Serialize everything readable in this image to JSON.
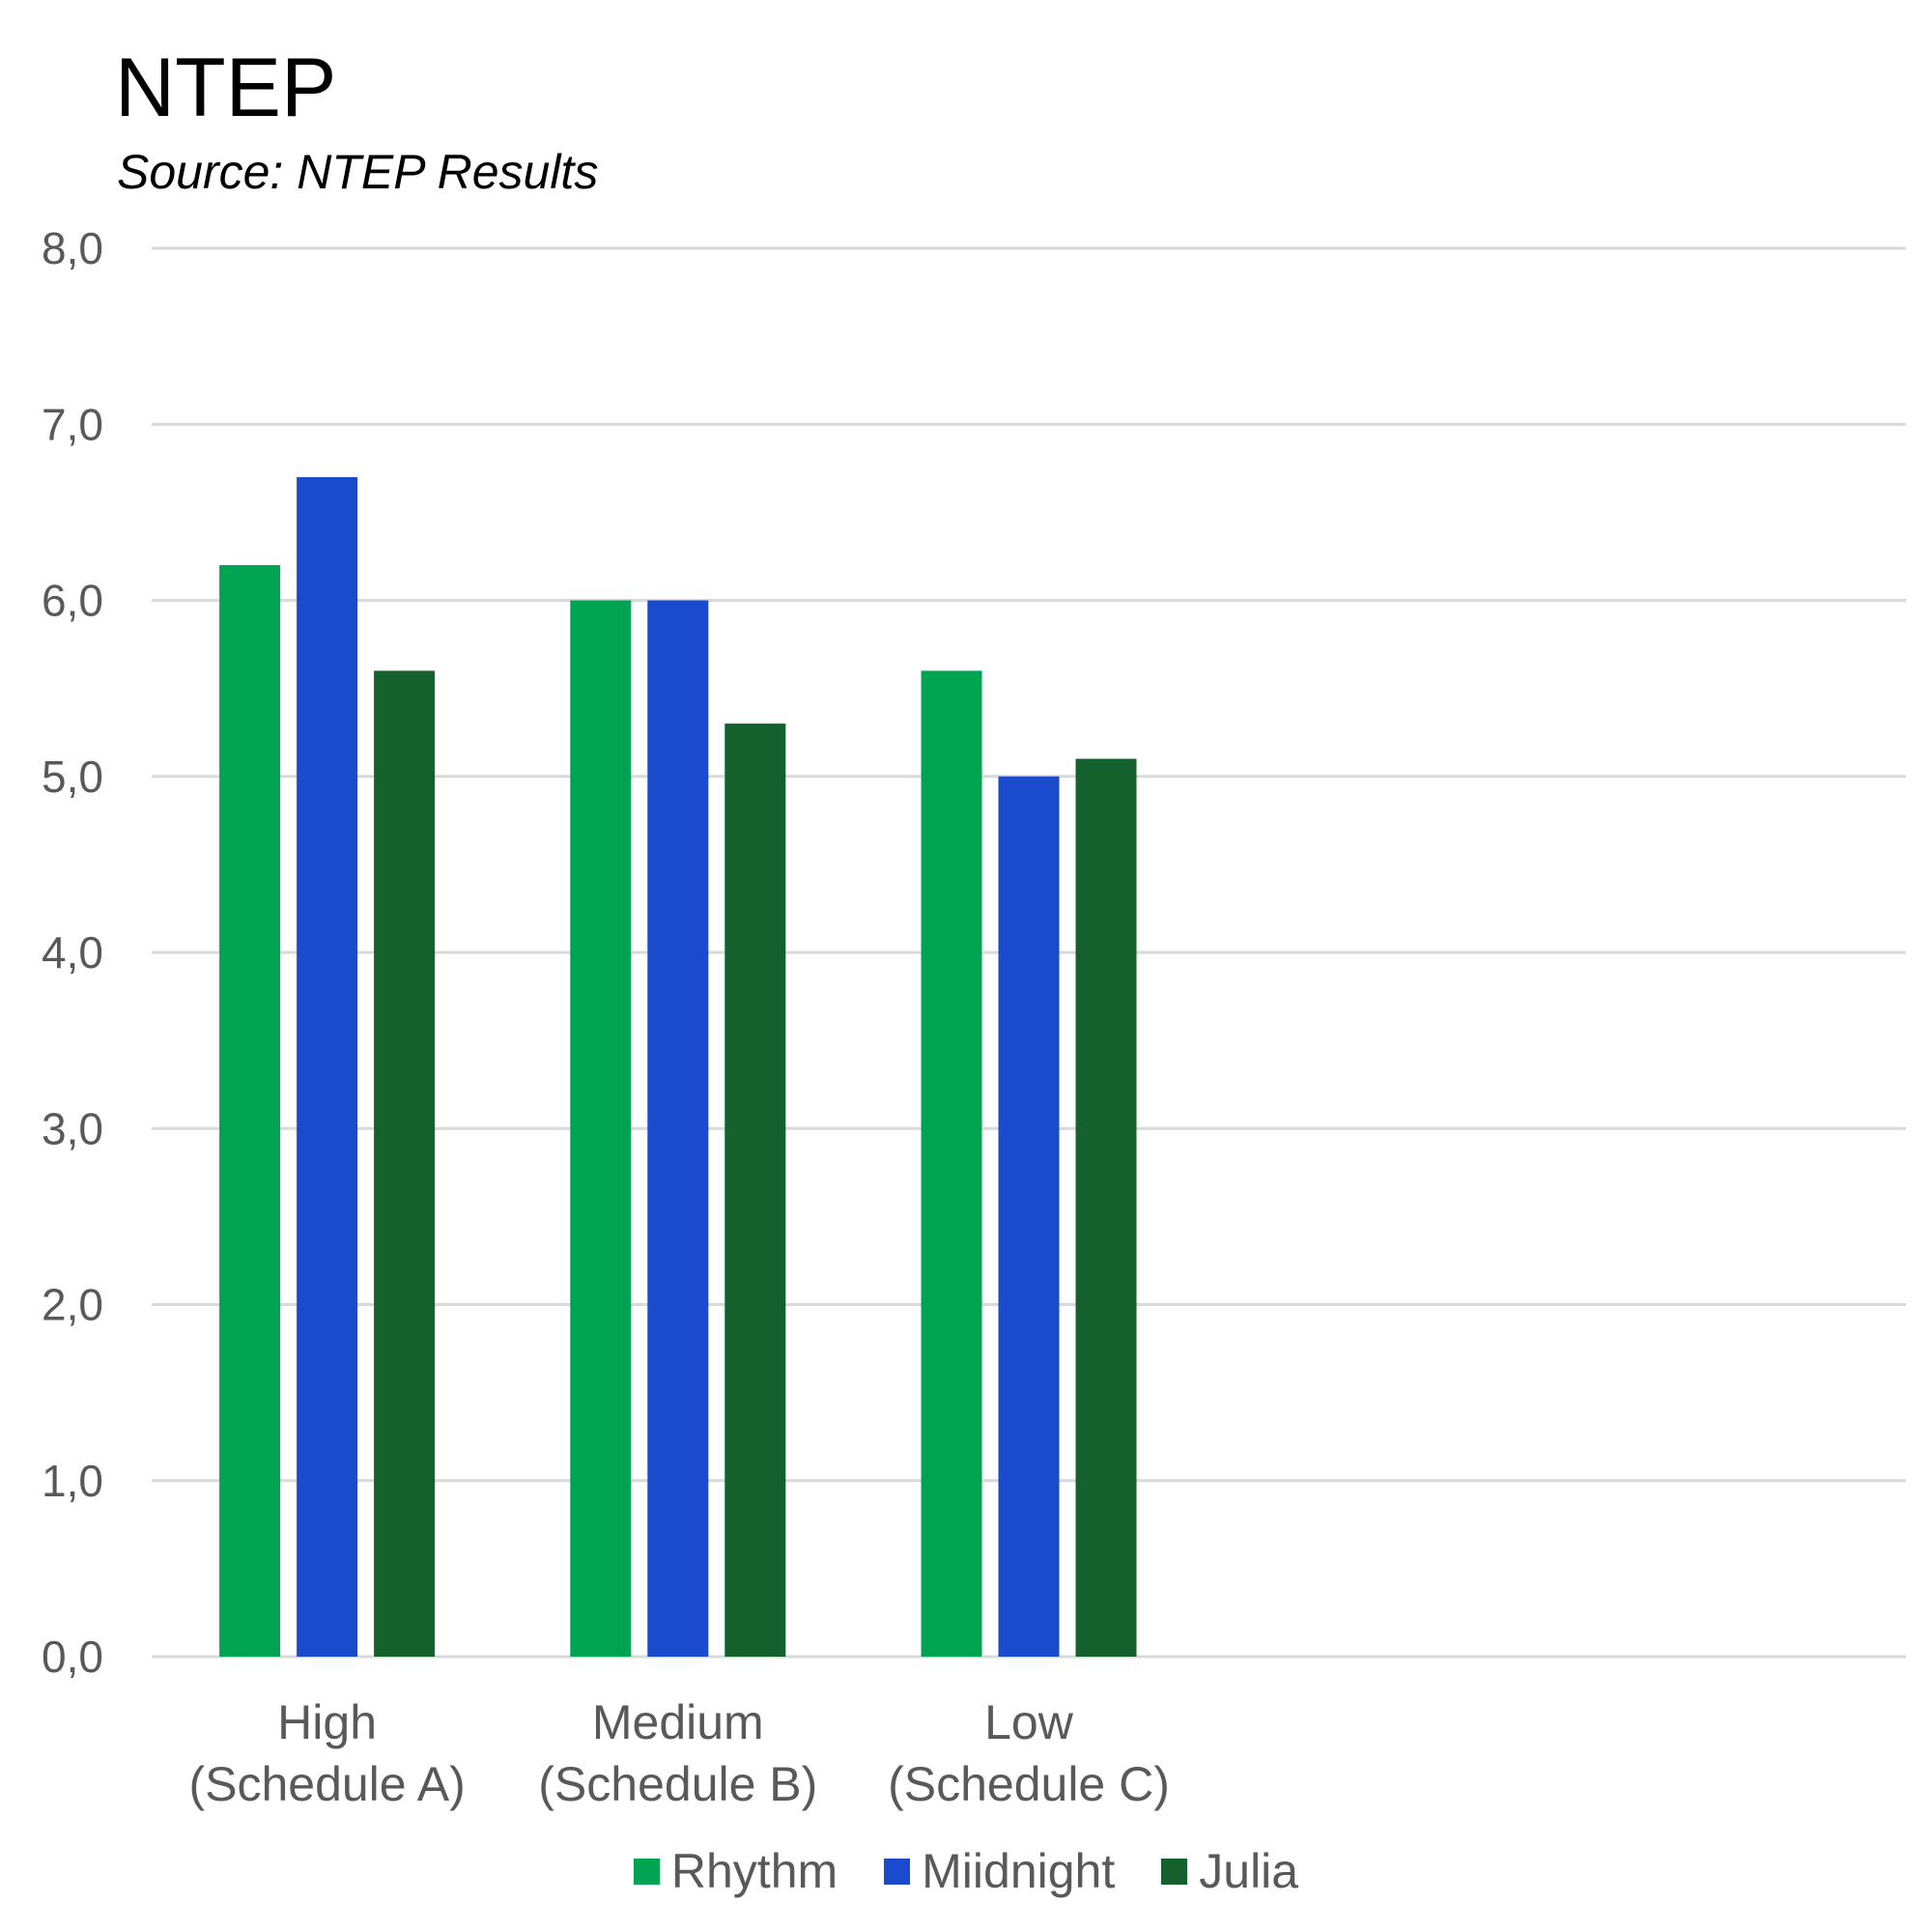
{
  "chart_data": {
    "type": "bar",
    "title": "NTEP",
    "subtitle": "Source: NTEP Results",
    "xlabel": "",
    "ylabel": "",
    "ylim": [
      0,
      8
    ],
    "yticks": [
      "0,0",
      "1,0",
      "2,0",
      "3,0",
      "4,0",
      "5,0",
      "6,0",
      "7,0",
      "8,0"
    ],
    "categories": [
      [
        "High",
        "(Schedule A)"
      ],
      [
        "Medium",
        "(Schedule B)"
      ],
      [
        "Low",
        "(Schedule C)"
      ]
    ],
    "category_slots": 5,
    "series": [
      {
        "name": "Rhythm",
        "color": "#00a352",
        "values": [
          6.2,
          6.0,
          5.6
        ]
      },
      {
        "name": "Miidnight",
        "color": "#1a4bcc",
        "values": [
          6.7,
          6.0,
          5.0
        ]
      },
      {
        "name": "Julia",
        "color": "#15612e",
        "values": [
          5.6,
          5.3,
          5.1
        ]
      }
    ],
    "grid": true,
    "legend_position": "bottom"
  }
}
